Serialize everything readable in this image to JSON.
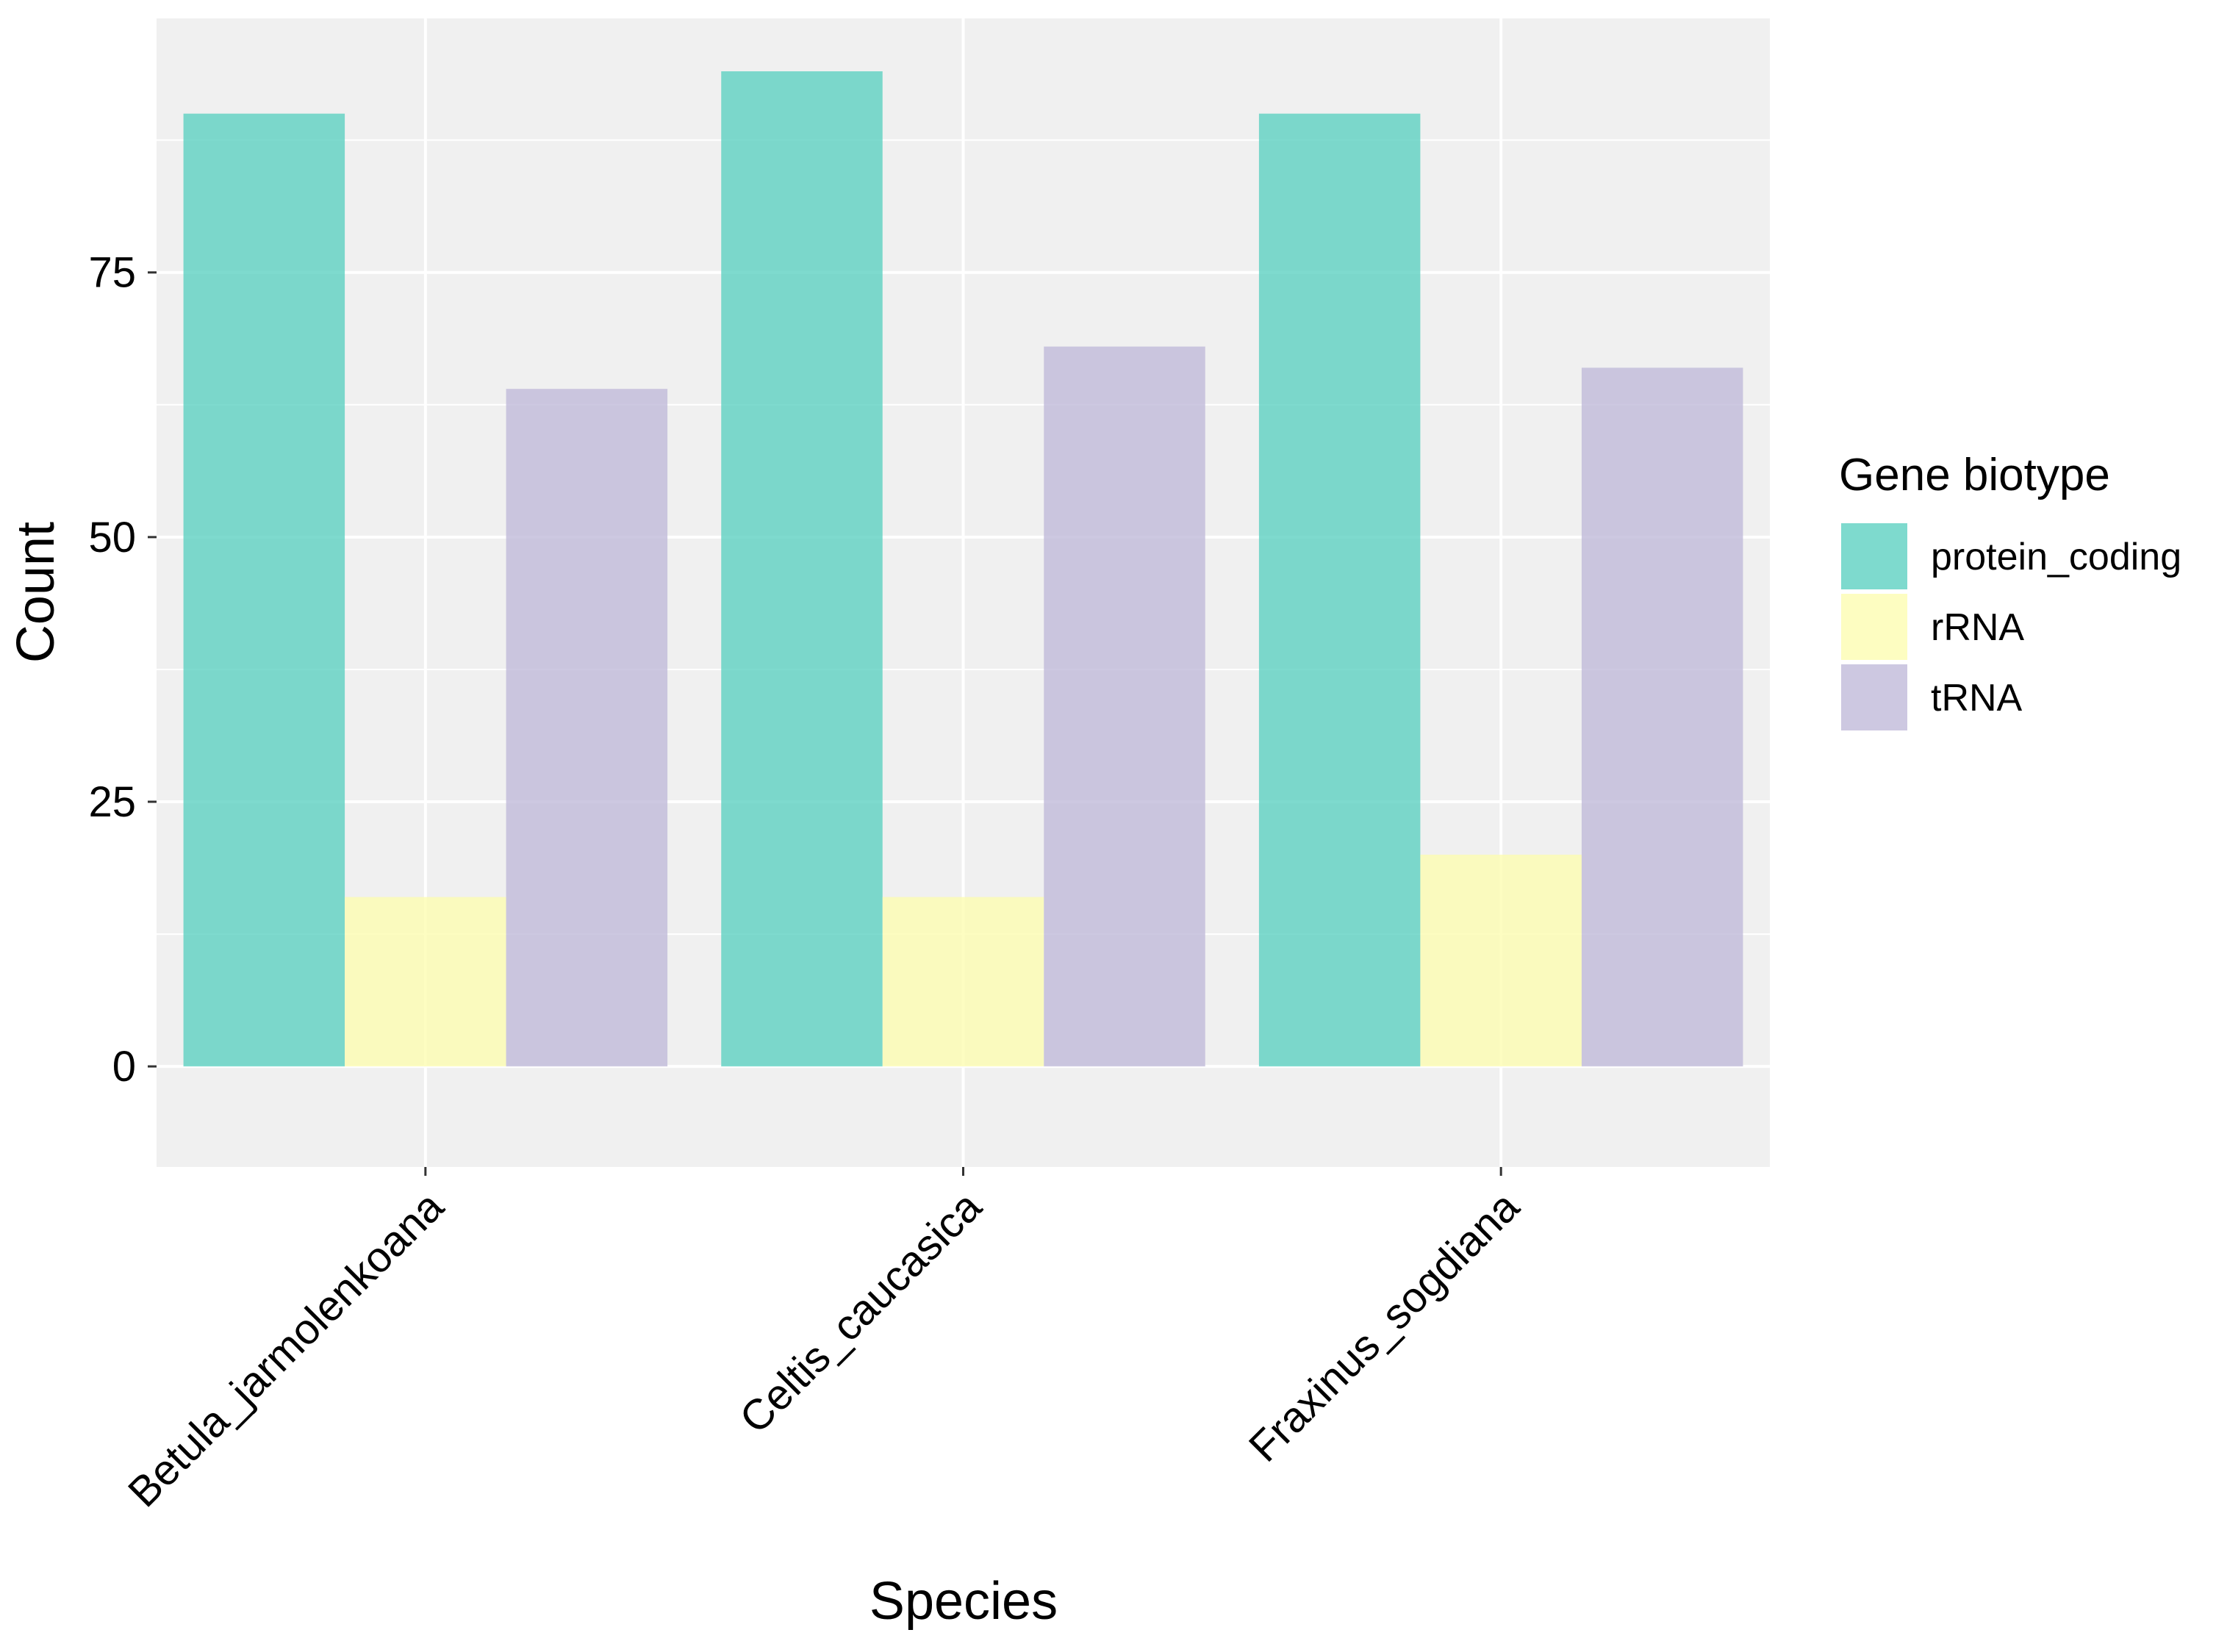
{
  "chart_data": {
    "type": "bar",
    "title": "",
    "xlabel": "Species",
    "ylabel": "Count",
    "ylim": [
      -9.5,
      99
    ],
    "yticks": [
      0,
      25,
      50,
      75
    ],
    "grid": true,
    "legend_position": "right",
    "legend_title": "Gene biotype",
    "categories": [
      "Betula_jarmolenkoana",
      "Celtis_caucasica",
      "Fraxinus_sogdiana"
    ],
    "series": [
      {
        "name": "protein_coding",
        "color": "#5ed1c2",
        "values": [
          90,
          94,
          90
        ]
      },
      {
        "name": "rRNA",
        "color": "#fcfdb1",
        "values": [
          16,
          16,
          20
        ]
      },
      {
        "name": "tRNA",
        "color": "#c0bad9",
        "values": [
          64,
          68,
          66
        ]
      }
    ]
  },
  "colors": {
    "panel_background": "#f0f0f0",
    "gridline": "#ffffff"
  }
}
